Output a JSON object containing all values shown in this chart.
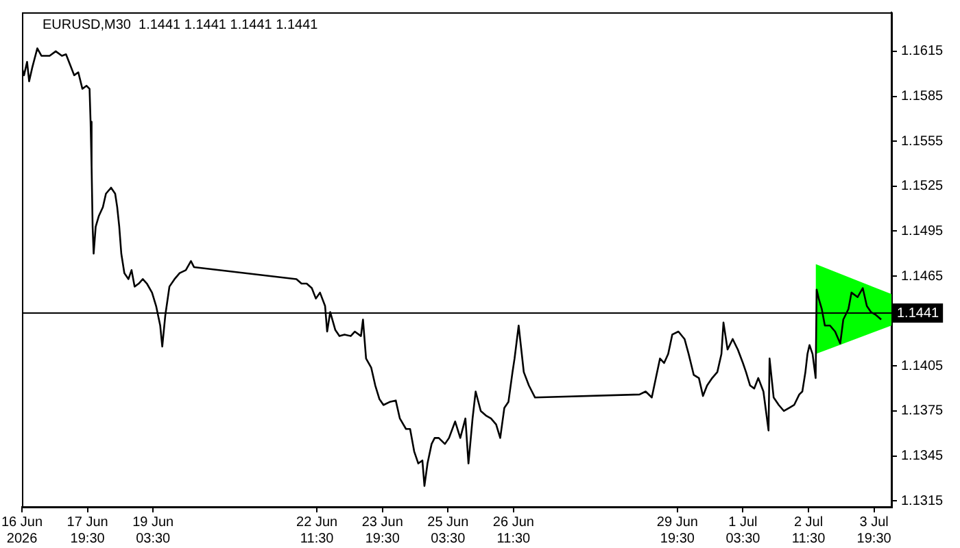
{
  "chart_data": {
    "type": "line",
    "title": "EURUSD,M30  1.1441 1.1441 1.1441 1.1441",
    "xlim": [
      "2026-06-16T11:30",
      "2026-07-04T04:00"
    ],
    "xticks": [
      {
        "value": "2026-06-16T11:30",
        "label": "16 Jun 2026"
      },
      {
        "value": "2026-06-17T19:30",
        "label": "17 Jun 19:30"
      },
      {
        "value": "2026-06-19T03:30",
        "label": "19 Jun 03:30"
      },
      {
        "value": "2026-06-22T11:30",
        "label": "22 Jun 11:30"
      },
      {
        "value": "2026-06-23T19:30",
        "label": "23 Jun 19:30"
      },
      {
        "value": "2026-06-25T03:30",
        "label": "25 Jun 03:30"
      },
      {
        "value": "2026-06-26T11:30",
        "label": "26 Jun 11:30"
      },
      {
        "value": "2026-06-29T19:30",
        "label": "29 Jun 19:30"
      },
      {
        "value": "2026-07-01T03:30",
        "label": "1 Jul 03:30"
      },
      {
        "value": "2026-07-02T11:30",
        "label": "2 Jul 11:30"
      },
      {
        "value": "2026-07-03T19:30",
        "label": "3 Jul 19:30"
      }
    ],
    "ylim": [
      1.1311,
      1.1641
    ],
    "yticks": [
      1.1315,
      1.1345,
      1.1375,
      1.1405,
      1.1465,
      1.1495,
      1.1525,
      1.1555,
      1.1585,
      1.1615
    ],
    "grid": false,
    "legend": false,
    "ref_lines": [
      {
        "axis": "y",
        "value": 1.1441,
        "label": "1.1441",
        "color": "#000000"
      }
    ],
    "series": [
      {
        "color": "#000000",
        "x": [
          "2026-06-16T11:30",
          "2026-06-16T12:30",
          "2026-06-16T14:00",
          "2026-06-16T15:00",
          "2026-06-16T16:30",
          "2026-06-16T19:00",
          "2026-06-16T21:00",
          "2026-06-17T01:00",
          "2026-06-17T04:00",
          "2026-06-17T07:00",
          "2026-06-17T09:00",
          "2026-06-17T11:00",
          "2026-06-17T13:00",
          "2026-06-17T15:00",
          "2026-06-17T17:00",
          "2026-06-17T19:00",
          "2026-06-17T20:30",
          "2026-06-17T21:00",
          "2026-06-17T21:30",
          "2026-06-17T22:00",
          "2026-06-17T22:30",
          "2026-06-17T23:30",
          "2026-06-18T01:00",
          "2026-06-18T03:00",
          "2026-06-18T04:30",
          "2026-06-18T07:00",
          "2026-06-18T09:00",
          "2026-06-18T10:00",
          "2026-06-18T11:00",
          "2026-06-18T12:00",
          "2026-06-18T13:30",
          "2026-06-18T15:30",
          "2026-06-18T17:00",
          "2026-06-18T18:30",
          "2026-06-18T20:30",
          "2026-06-18T22:30",
          "2026-06-19T00:30",
          "2026-06-19T03:00",
          "2026-06-19T05:00",
          "2026-06-19T07:00",
          "2026-06-19T08:00",
          "2026-06-19T09:30",
          "2026-06-19T11:30",
          "2026-06-19T14:00",
          "2026-06-19T16:30",
          "2026-06-19T19:30",
          "2026-06-19T22:00",
          "2026-06-19T23:30",
          "2026-06-22T01:30",
          "2026-06-22T04:00",
          "2026-06-22T06:30",
          "2026-06-22T09:00",
          "2026-06-22T11:00",
          "2026-06-22T13:00",
          "2026-06-22T15:30",
          "2026-06-22T16:30",
          "2026-06-22T18:00",
          "2026-06-22T20:30",
          "2026-06-22T22:30",
          "2026-06-23T01:00",
          "2026-06-23T04:00",
          "2026-06-23T06:00",
          "2026-06-23T09:00",
          "2026-06-23T10:00",
          "2026-06-23T11:30",
          "2026-06-23T14:00",
          "2026-06-23T16:00",
          "2026-06-23T18:00",
          "2026-06-23T20:00",
          "2026-06-23T23:00",
          "2026-06-24T02:00",
          "2026-06-24T04:00",
          "2026-06-24T07:00",
          "2026-06-24T09:00",
          "2026-06-24T11:00",
          "2026-06-24T13:00",
          "2026-06-24T15:00",
          "2026-06-24T16:00",
          "2026-06-24T17:30",
          "2026-06-24T19:30",
          "2026-06-24T21:00",
          "2026-06-24T23:00",
          "2026-06-25T02:00",
          "2026-06-25T04:00",
          "2026-06-25T07:00",
          "2026-06-25T09:30",
          "2026-06-25T12:00",
          "2026-06-25T13:30",
          "2026-06-25T15:30",
          "2026-06-25T17:00",
          "2026-06-25T19:30",
          "2026-06-25T22:00",
          "2026-06-26T00:30",
          "2026-06-26T03:00",
          "2026-06-26T05:00",
          "2026-06-26T07:00",
          "2026-06-26T09:00",
          "2026-06-26T11:00",
          "2026-06-26T12:00",
          "2026-06-26T14:00",
          "2026-06-26T16:30",
          "2026-06-26T19:00",
          "2026-06-26T22:00",
          "2026-06-29T01:00",
          "2026-06-29T04:00",
          "2026-06-29T07:00",
          "2026-06-29T09:00",
          "2026-06-29T11:00",
          "2026-06-29T13:00",
          "2026-06-29T15:00",
          "2026-06-29T17:00",
          "2026-06-29T20:00",
          "2026-06-29T23:00",
          "2026-06-30T01:00",
          "2026-06-30T03:30",
          "2026-06-30T06:00",
          "2026-06-30T08:00",
          "2026-06-30T10:00",
          "2026-06-30T12:30",
          "2026-06-30T15:00",
          "2026-06-30T17:00",
          "2026-06-30T18:00",
          "2026-06-30T20:00",
          "2026-06-30T22:30",
          "2026-07-01T01:00",
          "2026-07-01T03:30",
          "2026-07-01T05:00",
          "2026-07-01T07:00",
          "2026-07-01T09:00",
          "2026-07-01T11:00",
          "2026-07-01T13:30",
          "2026-07-01T16:00",
          "2026-07-01T16:30",
          "2026-07-01T18:30",
          "2026-07-01T21:00",
          "2026-07-01T23:30",
          "2026-07-02T02:00",
          "2026-07-02T04:30",
          "2026-07-02T07:00",
          "2026-07-02T08:30",
          "2026-07-02T10:00",
          "2026-07-02T11:00",
          "2026-07-02T12:00",
          "2026-07-02T13:30",
          "2026-07-02T15:00",
          "2026-07-02T15:30",
          "2026-07-02T16:30",
          "2026-07-02T18:00",
          "2026-07-02T19:30",
          "2026-07-02T22:00",
          "2026-07-03T00:30",
          "2026-07-03T03:00",
          "2026-07-03T04:30",
          "2026-07-03T07:00",
          "2026-07-03T08:30",
          "2026-07-03T11:30",
          "2026-07-03T14:00",
          "2026-07-03T16:00",
          "2026-07-03T18:00",
          "2026-07-03T20:30",
          "2026-07-03T23:00"
        ],
        "values": [
          1.1604,
          1.1599,
          1.1608,
          1.1595,
          1.1604,
          1.1617,
          1.1612,
          1.1612,
          1.1615,
          1.1612,
          1.1613,
          1.1606,
          1.1599,
          1.1601,
          1.159,
          1.1592,
          1.159,
          1.1568,
          1.1538,
          1.1498,
          1.148,
          1.1498,
          1.1505,
          1.1511,
          1.152,
          1.1524,
          1.152,
          1.1511,
          1.1498,
          1.148,
          1.1467,
          1.1463,
          1.1469,
          1.1458,
          1.146,
          1.1463,
          1.146,
          1.1454,
          1.1445,
          1.1432,
          1.1418,
          1.1439,
          1.1458,
          1.1463,
          1.1467,
          1.1469,
          1.1475,
          1.1471,
          1.1463,
          1.146,
          1.146,
          1.1457,
          1.145,
          1.1454,
          1.1445,
          1.1428,
          1.1441,
          1.1429,
          1.1425,
          1.1426,
          1.1425,
          1.1428,
          1.1425,
          1.1436,
          1.141,
          1.1404,
          1.1392,
          1.1383,
          1.1379,
          1.1381,
          1.1382,
          1.137,
          1.1363,
          1.1363,
          1.1348,
          1.134,
          1.1342,
          1.1325,
          1.134,
          1.1353,
          1.1357,
          1.1357,
          1.1353,
          1.1357,
          1.1368,
          1.1357,
          1.137,
          1.134,
          1.137,
          1.1388,
          1.1375,
          1.1372,
          1.137,
          1.1366,
          1.1357,
          1.1377,
          1.1381,
          1.1401,
          1.141,
          1.1432,
          1.1401,
          1.1392,
          1.1384,
          1.1386,
          1.1388,
          1.1384,
          1.1397,
          1.141,
          1.1407,
          1.1413,
          1.1426,
          1.1428,
          1.1423,
          1.1413,
          1.1399,
          1.1397,
          1.1385,
          1.1392,
          1.1397,
          1.1401,
          1.1413,
          1.1434,
          1.1416,
          1.1423,
          1.1416,
          1.1407,
          1.1401,
          1.1392,
          1.139,
          1.1397,
          1.1388,
          1.1362,
          1.141,
          1.1384,
          1.1379,
          1.1375,
          1.1377,
          1.1379,
          1.1386,
          1.1388,
          1.1401,
          1.1413,
          1.1419,
          1.1413,
          1.1397,
          1.1456,
          1.145,
          1.1443,
          1.1432,
          1.1432,
          1.1428,
          1.142,
          1.1436,
          1.1443,
          1.1454,
          1.1451,
          1.1457,
          1.1445,
          1.1441,
          1.1439,
          1.1436
        ]
      },
      {
        "type": "area",
        "color": "#00ff00",
        "x": [
          "2026-07-02T15:00",
          "2026-07-04T04:00"
        ],
        "values": [
          null,
          null
        ],
        "lower": [
          1.1413,
          1.1432
        ],
        "upper": [
          1.1473,
          1.1453
        ]
      }
    ]
  }
}
